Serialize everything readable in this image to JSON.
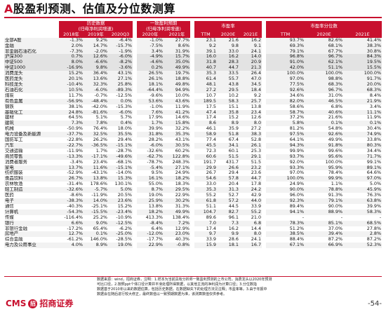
{
  "title_mark": "A",
  "title_rest": "股盈利预测、估值及分位数测算",
  "header": {
    "hist_group": "历史数据",
    "hist_sub": "(归母净利润增速)",
    "cons_group": "一致盈利预期",
    "cons_sub": "(归母净利润增速)",
    "pe_group": "市盈率",
    "pct_group": "市盈率分位数",
    "cols": [
      "2018年",
      "2019年",
      "2020Q3",
      "2020年",
      "2021年",
      "TTM",
      "2020E",
      "2021E",
      "TTM",
      "2020E",
      "2021E"
    ]
  },
  "rows": [
    {
      "name": "全部A股",
      "v": [
        "-1.3%",
        "9.2%",
        "-6.4%",
        "-1.0%",
        "27.7%",
        "23.1",
        "21.6",
        "16.2",
        "93.7%",
        "82.6%",
        "41.4%"
      ]
    },
    {
      "name": "金融",
      "v": [
        "2.0%",
        "14.7%",
        "-15.7%",
        "-7.5%",
        "8.6%",
        "9.2",
        "9.8",
        "9.1",
        "69.3%",
        "68.1%",
        "38.3%"
      ]
    },
    {
      "name": "非金融石油石化",
      "v": [
        "-7.3%",
        "-2.0%",
        "-1.9%",
        "3.4%",
        "31.9%",
        "39.1",
        "33.0",
        "24.1",
        "79.1%",
        "67.7%",
        "30.8%"
      ]
    },
    {
      "name": "沪深300",
      "v": [
        "0.7%",
        "12.6%",
        "-6.0%",
        "-4.9%",
        "15.7%",
        "16.0",
        "16.2",
        "14.0",
        "96.8%",
        "96.7%",
        "84.3%"
      ]
    },
    {
      "name": "中证500",
      "v": [
        "8.0%",
        "-6.6%",
        "-8.2%",
        "-4.6%",
        "35.0%",
        "31.8",
        "28.3",
        "20.9",
        "91.0%",
        "62.1%",
        "19.5%"
      ]
    },
    {
      "name": "中证1000",
      "v": [
        "-16.9%",
        "9.8%",
        "-3.6%",
        "0.2%",
        "49.9%",
        "40.7",
        "44.7",
        "21.3",
        "42.0%",
        "51.1%",
        "15.5%"
      ]
    },
    {
      "name": "消费龙头",
      "v": [
        "15.2%",
        "36.4%",
        "43.1%",
        "26.5%",
        "19.7%",
        "35.3",
        "33.5",
        "26.4",
        "100.0%",
        "100.0%",
        "100.0%"
      ]
    },
    {
      "name": "医药龙头",
      "v": [
        "20.1%",
        "13.6%",
        "27.1%",
        "26.1%",
        "18.8%",
        "61.4",
        "55.7",
        "47.0",
        "97.0%",
        "98.8%",
        "91.7%"
      ]
    },
    {
      "name": "科技龙头",
      "v": [
        "-10.4%",
        "32.3%",
        "25.8%",
        "18.1%",
        "49.8%",
        "48.1",
        "43.8",
        "34.5",
        "77.5%",
        "68.3%",
        "20.0%"
      ]
    },
    {
      "name": "石油石化",
      "v": [
        "10.5%",
        "-6.0%",
        "-89.3%",
        "-64.4%",
        "94.9%",
        "27.2",
        "29.5",
        "18.4",
        "92.6%",
        "96.7%",
        "68.3%"
      ]
    },
    {
      "name": "煤炭",
      "v": [
        "11.7%",
        "-0.7%",
        "-12.5%",
        "-9.6%",
        "10.0%",
        "10.7",
        "10.2",
        "9.2",
        "34.6%",
        "31.0%",
        "8.4%"
      ]
    },
    {
      "name": "有色金属",
      "v": [
        "-56.9%",
        "-48.4%",
        "0.0%",
        "53.6%",
        "43.6%",
        "189.5",
        "58.3",
        "25.7",
        "82.0%",
        "46.5%",
        "21.9%"
      ]
    },
    {
      "name": "钢铁",
      "v": [
        "38.1%",
        "-42.0%",
        "-15.3%",
        "-1.0%",
        "11.9%",
        "17.5",
        "15.1",
        "13.8",
        "58.6%",
        "6.8%",
        "3.4%"
      ]
    },
    {
      "name": "基础化工",
      "v": [
        "24.8%",
        "-81.6%",
        "-6.0%",
        "7.6%",
        "41.2%",
        "47.4",
        "35.8",
        "23.4",
        "58.7%",
        "40.6%",
        "11.1%"
      ]
    },
    {
      "name": "建材",
      "v": [
        "64.5%",
        "5.1%",
        "5.7%",
        "17.9%",
        "14.6%",
        "17.4",
        "15.2",
        "12.6",
        "37.2%",
        "21.6%",
        "11.9%"
      ]
    },
    {
      "name": "建筑",
      "v": [
        "7.3%",
        "7.8%",
        "0.4%",
        "1.7%",
        "15.8%",
        "8.6",
        "8.9",
        "8.0",
        "5.8%",
        "0.1%",
        "0.1%"
      ]
    },
    {
      "name": "机械",
      "v": [
        "-50.9%",
        "76.4%",
        "18.0%",
        "39.9%",
        "32.2%",
        "46.1",
        "35.9",
        "27.2",
        "81.2%",
        "54.8%",
        "30.4%"
      ]
    },
    {
      "name": "电力设备及新能源",
      "v": [
        "-37.7%",
        "32.5%",
        "35.5%",
        "31.8%",
        "35.3%",
        "58.9",
        "51.8",
        "38.3",
        "97.5%",
        "92.6%",
        "74.9%"
      ]
    },
    {
      "name": "国防军工",
      "v": [
        "-22.8%",
        "26.2%",
        "29.4%",
        "28.2%",
        "43.1%",
        "77.4",
        "67.4",
        "52.8",
        "64.1%",
        "49.9%",
        "33.8%"
      ]
    },
    {
      "name": "汽车",
      "v": [
        "-22.7%",
        "-36.5%",
        "-15.1%",
        "-6.0%",
        "30.5%",
        "45.5",
        "34.1",
        "26.1",
        "94.3%",
        "91.8%",
        "80.3%"
      ]
    },
    {
      "name": "交通运输",
      "v": [
        "-11.9%",
        "1.7%",
        "-28.7%",
        "-32.6%",
        "60.2%",
        "72.3",
        "60.1",
        "25.3",
        "99.9%",
        "99.6%",
        "34.4%"
      ]
    },
    {
      "name": "商贸零售",
      "v": [
        "-13.3%",
        "-17.1%",
        "-49.6%",
        "-62.7%",
        "122.8%",
        "60.6",
        "51.5",
        "29.1",
        "93.7%",
        "95.6%",
        "71.7%"
      ]
    },
    {
      "name": "消费者服务",
      "v": [
        "-3.4%",
        "23.4%",
        "-68.1%",
        "-78.7%",
        "248.3%",
        "191.7",
        "431.7",
        "51.5",
        "92.0%",
        "100.0%",
        "99.1%"
      ]
    },
    {
      "name": "家电",
      "v": [
        "13.7%",
        "11.6%",
        "-15.1%",
        "-5.4%",
        "27.1%",
        "29.9",
        "26.6",
        "23.2",
        "93.3%",
        "95.9%",
        "89.1%"
      ]
    },
    {
      "name": "纺织服装",
      "v": [
        "-52.9%",
        "-43.1%",
        "-14.0%",
        "9.5%",
        "24.9%",
        "26.7",
        "29.4",
        "23.6",
        "97.0%",
        "78.4%",
        "64.6%"
      ]
    },
    {
      "name": "食品饮料",
      "v": [
        "26.7%",
        "13.8%",
        "15.3%",
        "16.1%",
        "18.2%",
        "54.6",
        "57.8",
        "44.7",
        "100.0%",
        "99.9%",
        "97.0%"
      ]
    },
    {
      "name": "农林牧渔",
      "v": [
        "-31.4%",
        "178.6%",
        "130.1%",
        "55.0%",
        "18.3%",
        "33.0",
        "20.4",
        "17.8",
        "24.9%",
        "1.1%",
        "5.0%"
      ]
    },
    {
      "name": "轻工制造",
      "v": [
        "-32.6%",
        "-5.7%",
        "5.0%",
        "8.7%",
        "29.5%",
        "35.3",
        "31.3",
        "24.2",
        "90.0%",
        "78.8%",
        "45.9%"
      ]
    },
    {
      "name": "医药",
      "v": [
        "-8.6%",
        "-11.9%",
        "20.5%",
        "19.0%",
        "22.9%",
        "55.2",
        "52.7",
        "42.9",
        "96.0%",
        "91.3%",
        "76.3%"
      ]
    },
    {
      "name": "电子",
      "v": [
        "-38.3%",
        "14.0%",
        "23.6%",
        "25.9%",
        "30.2%",
        "61.8",
        "57.2",
        "44.0",
        "92.3%",
        "79.1%",
        "63.8%"
      ]
    },
    {
      "name": "通信",
      "v": [
        "-40.3%",
        "-25.1%",
        "15.2%",
        "13.8%",
        "31.3%",
        "51.1",
        "44.5",
        "33.9",
        "89.4%",
        "90.0%",
        "39.9%"
      ]
    },
    {
      "name": "计算机",
      "v": [
        "-54.3%",
        "-15.5%",
        "-23.4%",
        "18.2%",
        "49.9%",
        "104.7",
        "82.7",
        "55.2",
        "94.1%",
        "88.9%",
        "58.3%"
      ]
    },
    {
      "name": "传媒",
      "v": [
        "-116.4%",
        "25.2%",
        "-10.9%",
        "413.3%",
        "138.4%",
        "89.6",
        "96.1",
        "21.0",
        "-",
        "-",
        "-"
      ]
    },
    {
      "name": "银行",
      "v": [
        "6.6%",
        "9.0%",
        "-12.5%",
        "-8.4%",
        "7.2%",
        "7.0",
        "7.3",
        "6.8",
        "78.3%",
        "85.1%",
        "68.5%"
      ]
    },
    {
      "name": "非银行金融",
      "v": [
        "-17.2%",
        "65.4%",
        "-6.2%",
        "6.4%",
        "12.9%",
        "17.4",
        "16.2",
        "14.4",
        "51.2%",
        "37.0%",
        "27.8%"
      ]
    },
    {
      "name": "房地产",
      "v": [
        "12.7%",
        "0.1%",
        "-25.0%",
        "-12.0%",
        "23.0%",
        "9.7",
        "9.9",
        "8.0",
        "38.5%",
        "39.4%",
        "2.8%"
      ]
    },
    {
      "name": "综合金融",
      "v": [
        "-61.2%",
        "146.0%",
        "-28.5%",
        "-17.7%",
        "40.3%",
        "33.9",
        "28.6",
        "24.1",
        "88.4%",
        "87.2%",
        "87.2%"
      ]
    },
    {
      "name": "电力及公用事业",
      "v": [
        "4.0%",
        "8.9%",
        "19.0%",
        "22.9%",
        "-0.8%",
        "15.9",
        "18.1",
        "16.7",
        "67.1%",
        "66.9%",
        "52.3%"
      ]
    }
  ],
  "notes": [
    "数据来源：wind，招商证券，注明：1.样本为当前具有分析师一致盈利预测的上市公司，消费龙头以2020年预测",
    "可比口径，2.按照ppt个体口径计算并平滑处理所得数据，以其他主流的净利润为计算口径；3.分位数指",
    "数据基于2010年以来的数据估算，包括历史数据，在数据缺失下的处理方法见注释；市盈率等，3.由于年报中",
    "数据会在随后进行较大修正，最终数值以一致预期数据为准，该测算数值仅供参考。"
  ],
  "logo": {
    "left": "CMS",
    "emblem": "招",
    "right": "招商证券"
  },
  "page_number": "-54-",
  "colors": {
    "accent": "#c8102e"
  }
}
